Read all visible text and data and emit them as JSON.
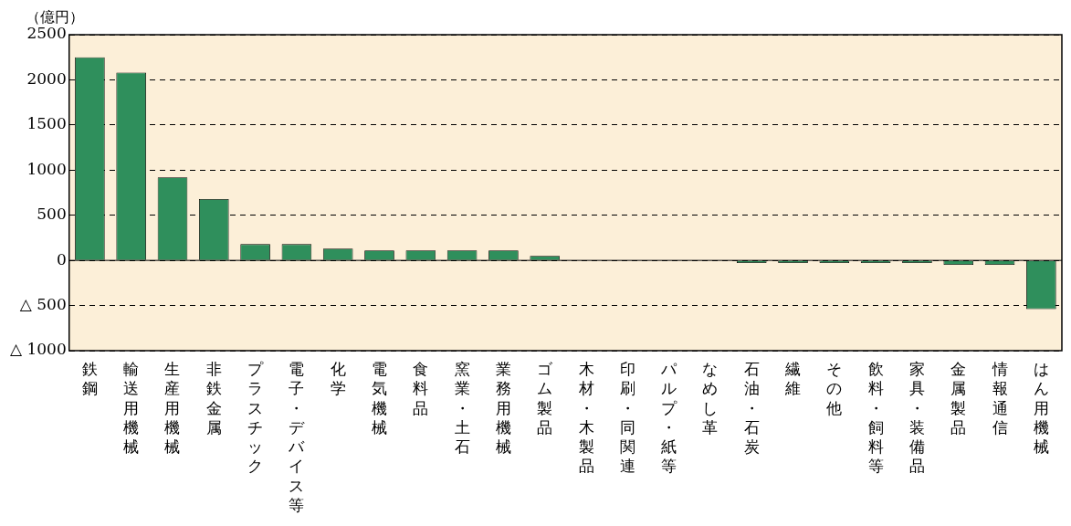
{
  "chart_data": {
    "type": "bar",
    "ylabel": "（億円）",
    "categories": [
      "鉄鋼",
      "輸送用機械",
      "生産用機械",
      "非鉄金属",
      "プラスチック",
      "電子・デバイス等",
      "化学",
      "電気機械",
      "食料品",
      "窯業・土石",
      "業務用機械",
      "ゴム製品",
      "木材・木製品",
      "印刷・同関連",
      "パルプ・紙等",
      "なめし革",
      "石油・石炭",
      "繊維",
      "その他",
      "飲料・飼料等",
      "家具・装備品",
      "金属製品",
      "情報通信",
      "はん用機械"
    ],
    "values": [
      2250,
      2080,
      920,
      680,
      180,
      180,
      130,
      110,
      110,
      110,
      110,
      50,
      0,
      0,
      0,
      0,
      -30,
      -30,
      -30,
      -30,
      -30,
      -50,
      -50,
      -540
    ],
    "color": "#2f8f5c",
    "ylim": [
      -1000,
      2500
    ],
    "yticks": [
      {
        "value": -1000,
        "label": "△ 1000"
      },
      {
        "value": -500,
        "label": "△ 500"
      },
      0,
      500,
      1000,
      1500,
      2000,
      2500
    ],
    "grid": "y"
  }
}
